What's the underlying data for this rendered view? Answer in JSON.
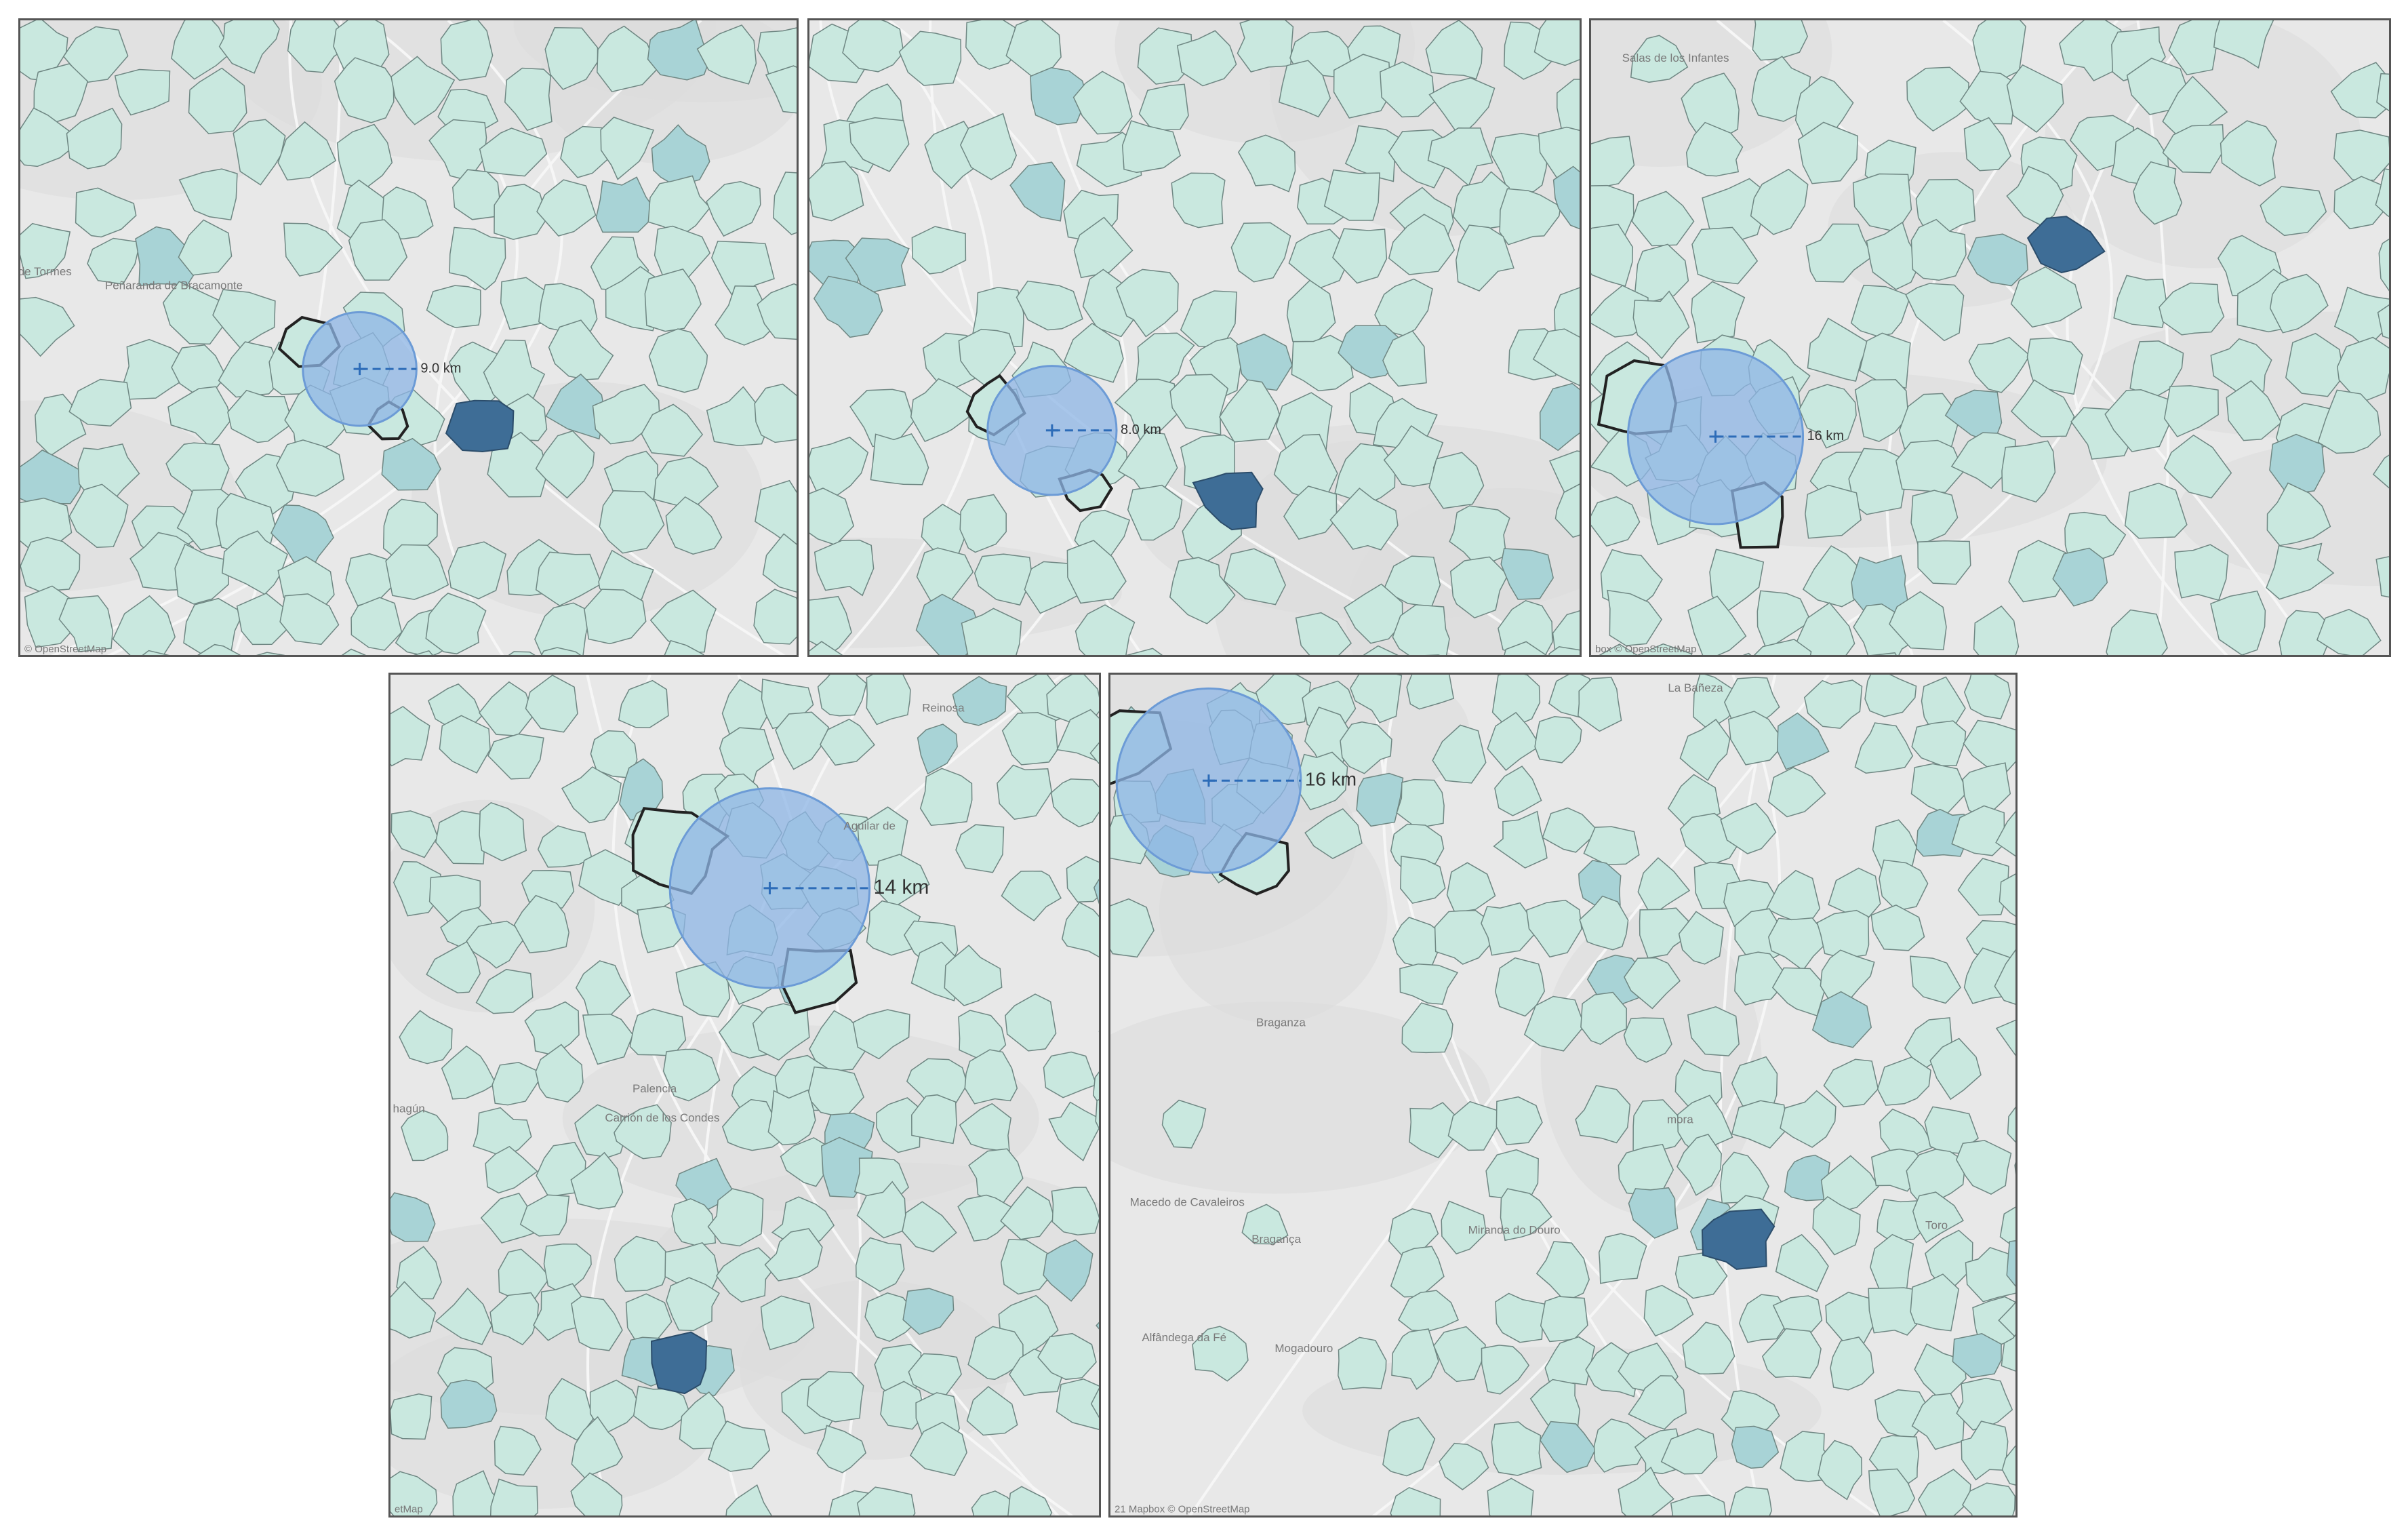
{
  "panels": [
    {
      "distance_label": "9.0 km",
      "places": [
        "Peñaranda de Bracamonte",
        "de Tormes"
      ],
      "attribution": "© OpenStreetMap"
    },
    {
      "distance_label": "8.0 km"
    },
    {
      "distance_label": "16 km",
      "places": [
        "Salas de los Infantes"
      ],
      "attribution": "box © OpenStreetMap"
    },
    {
      "distance_label": "14 km",
      "places": [
        "Reinosa",
        "Aguilar de",
        "Palencia",
        "Carrión de los Condes",
        "hagún"
      ],
      "attribution": "etMap"
    },
    {
      "distance_label": "16 km",
      "places": [
        "La Bañeza",
        "Braganza",
        "Macedo de Cavaleiros",
        "Bragança",
        "Miranda do Douro",
        "Alfândega da Fé",
        "Mogadouro",
        "mora",
        "Toro"
      ],
      "attribution": "21 Mapbox © OpenStreetMap"
    }
  ]
}
